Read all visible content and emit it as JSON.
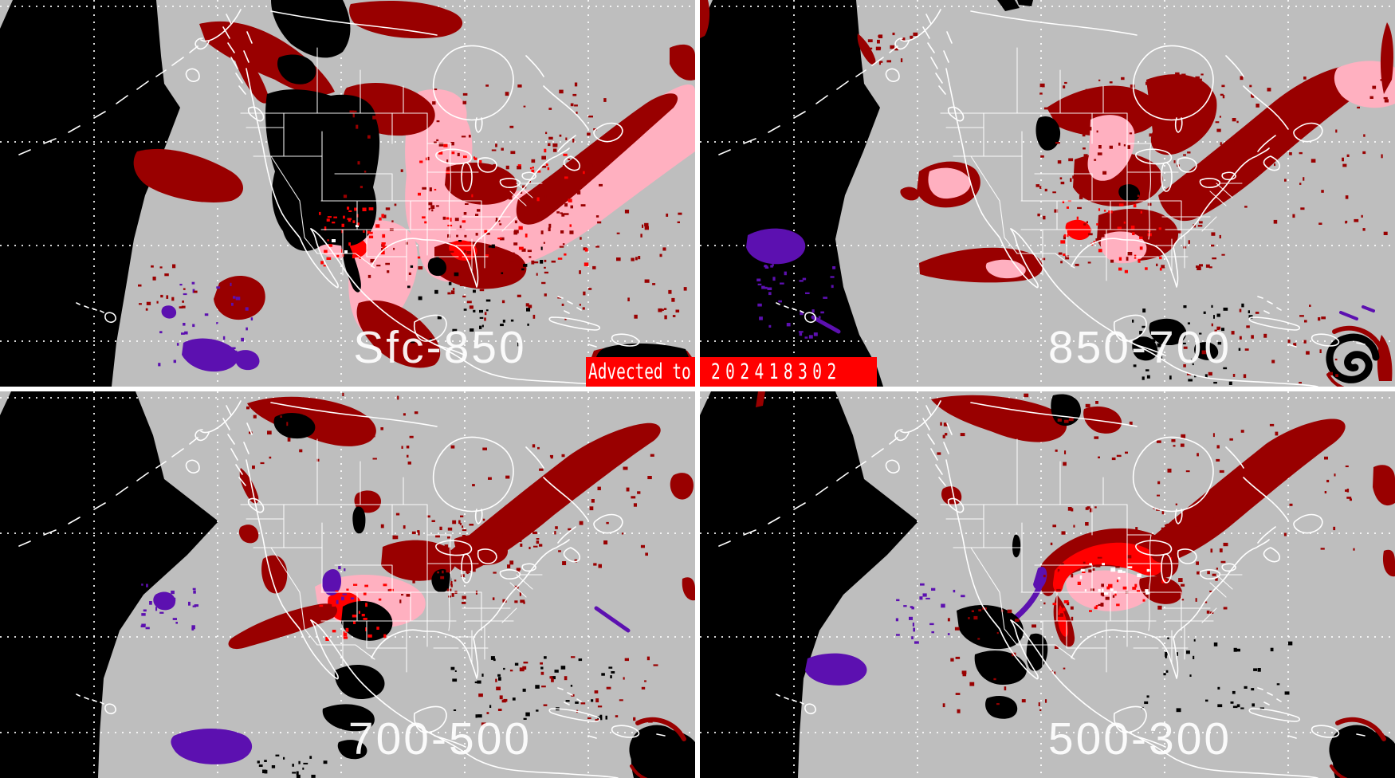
{
  "banner": {
    "label": "Advected to",
    "timestamp": "202418302"
  },
  "panels": [
    {
      "id": "sfc-850",
      "label": "Sfc-850",
      "position": "top-left"
    },
    {
      "id": "850-700",
      "label": "850-700",
      "position": "top-right"
    },
    {
      "id": "700-500",
      "label": "700-500",
      "position": "bottom-left"
    },
    {
      "id": "500-300",
      "label": "500-300",
      "position": "bottom-right"
    }
  ],
  "colors": {
    "gray": "#bebebe",
    "black": "#000000",
    "pink": "#ffb0c0",
    "red": "#ff0000",
    "dark_red": "#990000",
    "purple": "#5c10b0",
    "map_lines": "#ffffff",
    "banner_red": "#ff0000",
    "banner_text": "#ffffff",
    "divider": "#ffffff"
  }
}
